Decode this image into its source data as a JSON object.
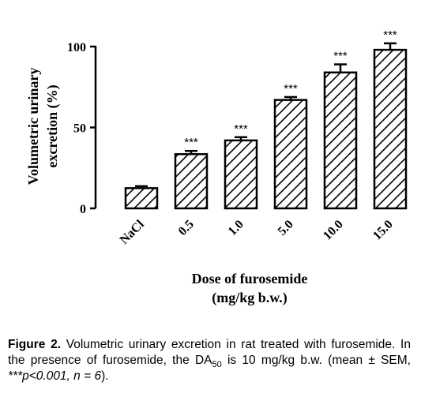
{
  "chart_data": {
    "type": "bar",
    "categories": [
      "NaCl",
      "0.5",
      "1.0",
      "5.0",
      "10.0",
      "15.0"
    ],
    "values": [
      12.5,
      33.5,
      42,
      67,
      84,
      98
    ],
    "errors": [
      1.2,
      2,
      2,
      1.8,
      5,
      4
    ],
    "significance": [
      "",
      "***",
      "***",
      "***",
      "***",
      "***"
    ],
    "ylabel_line1": "Volumetric urinary",
    "ylabel_line2": "excretion (%)",
    "xlabel_line1": "Dose of furosemide",
    "xlabel_line2": "(mg/kg b.w.)",
    "yticks": [
      0,
      50,
      100
    ],
    "ylim": [
      0,
      100
    ],
    "bar_fill": "hatched",
    "colors": {
      "bar_stroke": "#000000",
      "hatch": "#000000",
      "background": "#ffffff"
    }
  },
  "caption": {
    "label": "Figure 2.",
    "text_before_sub": " Volumetric urinary excretion in rat treated with furosemide. In the presence of furosemide, the DA",
    "sub": "50",
    "text_after_sub": " is 10 mg/kg b.w. (mean ± SEM, ",
    "pvalue": "***p<0.001, n = 6",
    "text_end": ")."
  }
}
